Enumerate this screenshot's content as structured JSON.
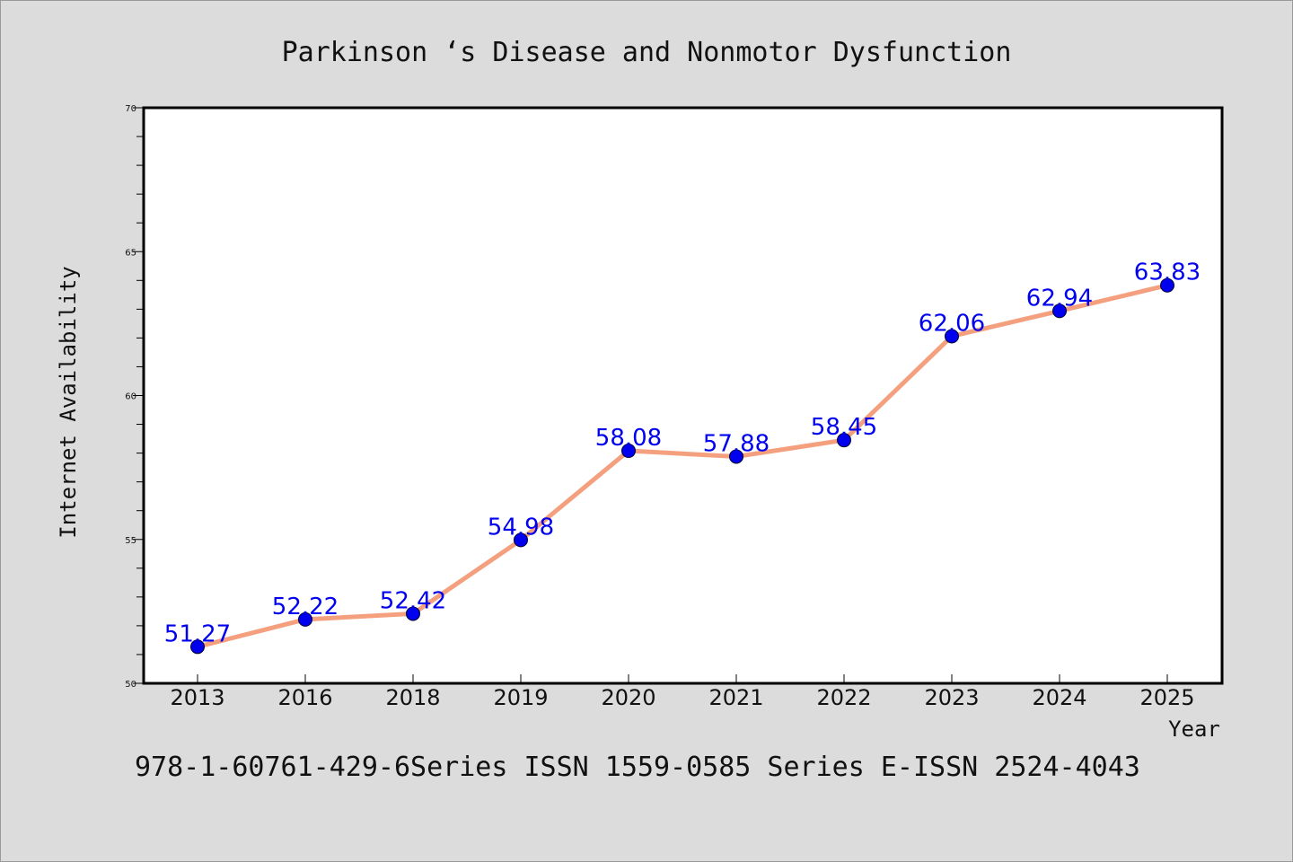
{
  "chart_data": {
    "type": "line",
    "title": "Parkinson ‘s Disease and Nonmotor Dysfunction",
    "xlabel": "Year",
    "ylabel": "Internet Availability",
    "categories": [
      "2013",
      "2016",
      "2018",
      "2019",
      "2020",
      "2021",
      "2022",
      "2023",
      "2024",
      "2025"
    ],
    "series": [
      {
        "values": [
          51.27,
          52.22,
          52.42,
          54.98,
          58.08,
          57.88,
          58.45,
          62.06,
          62.94,
          63.83
        ],
        "labels": [
          "51.27",
          "52.22",
          "52.42",
          "54.98",
          "58.08",
          "57.88",
          "58.45",
          "62.06",
          "62.94",
          "63.83"
        ],
        "line_color": "#f4a07e",
        "marker_color": "#0000ee",
        "label_color": "#0000ee"
      }
    ],
    "ylim": [
      50,
      70
    ],
    "yticks": [
      50,
      55,
      60,
      65,
      70
    ],
    "grid": false,
    "legend": "none"
  },
  "footer_text": "978-1-60761-429-6Series ISSN 1559-0585 Series E-ISSN 2524-4043"
}
